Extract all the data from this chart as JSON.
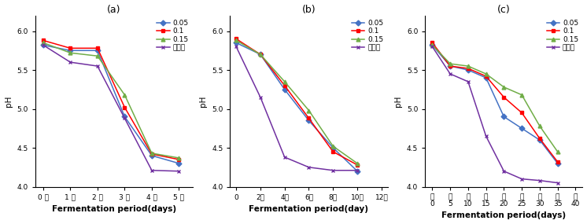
{
  "subplots": [
    {
      "title": "(a)",
      "xlabel": "Fermentation period(days)",
      "ylabel": "pH",
      "xlim": [
        -0.3,
        5.5
      ],
      "ylim": [
        4.0,
        6.2
      ],
      "yticks": [
        4.0,
        4.5,
        5.0,
        5.5,
        6.0
      ],
      "xtick_labels": [
        "0 일",
        "1 일",
        "2 일",
        "3 일",
        "4 일",
        "5 일"
      ],
      "xtick_positions": [
        0,
        1,
        2,
        3,
        4,
        5
      ],
      "series": [
        {
          "label": "0.05",
          "color": "#4472C4",
          "marker": "D",
          "x": [
            0,
            1,
            2,
            3,
            4,
            5
          ],
          "y": [
            5.82,
            5.75,
            5.75,
            4.9,
            4.4,
            4.3
          ]
        },
        {
          "label": "0.1",
          "color": "#FF0000",
          "marker": "s",
          "x": [
            0,
            1,
            2,
            3,
            4,
            5
          ],
          "y": [
            5.88,
            5.78,
            5.78,
            5.02,
            4.42,
            4.35
          ]
        },
        {
          "label": "0.15",
          "color": "#70AD47",
          "marker": "^",
          "x": [
            0,
            1,
            2,
            3,
            4,
            5
          ],
          "y": [
            5.85,
            5.72,
            5.68,
            5.18,
            4.43,
            4.37
          ]
        },
        {
          "label": "미첸가",
          "color": "#7030A0",
          "marker": "x",
          "x": [
            0,
            1,
            2,
            3,
            4,
            5
          ],
          "y": [
            5.82,
            5.6,
            5.55,
            4.88,
            4.21,
            4.2
          ]
        }
      ]
    },
    {
      "title": "(b)",
      "xlabel": "Fermentation period(day)",
      "ylabel": "pH",
      "xlim": [
        -0.5,
        12.5
      ],
      "ylim": [
        4.0,
        6.2
      ],
      "yticks": [
        4.0,
        4.5,
        5.0,
        5.5,
        6.0
      ],
      "xtick_labels": [
        "0",
        "2일",
        "4일",
        "6일",
        "8일",
        "10일",
        "12일"
      ],
      "xtick_positions": [
        0,
        2,
        4,
        6,
        8,
        10,
        12
      ],
      "series": [
        {
          "label": "0.05",
          "color": "#4472C4",
          "marker": "D",
          "x": [
            0,
            2,
            4,
            6,
            8,
            10
          ],
          "y": [
            5.85,
            5.7,
            5.25,
            4.85,
            4.5,
            4.2
          ]
        },
        {
          "label": "0.1",
          "color": "#FF0000",
          "marker": "s",
          "x": [
            0,
            2,
            4,
            6,
            8,
            10
          ],
          "y": [
            5.9,
            5.7,
            5.3,
            4.88,
            4.45,
            4.28
          ]
        },
        {
          "label": "0.15",
          "color": "#70AD47",
          "marker": "^",
          "x": [
            0,
            2,
            4,
            6,
            8,
            10
          ],
          "y": [
            5.88,
            5.7,
            5.35,
            4.98,
            4.52,
            4.3
          ]
        },
        {
          "label": "미첸가",
          "color": "#7030A0",
          "marker": "x",
          "x": [
            0,
            2,
            4,
            6,
            8,
            10
          ],
          "y": [
            5.8,
            5.15,
            4.38,
            4.25,
            4.21,
            4.21
          ]
        }
      ]
    },
    {
      "title": "(c)",
      "xlabel": "Fermentation period(days)",
      "ylabel": "pH",
      "xlim": [
        -2,
        42
      ],
      "ylim": [
        4.0,
        6.2
      ],
      "yticks": [
        4.0,
        4.5,
        5.0,
        5.5,
        6.0
      ],
      "xtick_labels": [
        "일\n0",
        "일\n5",
        "일\n10",
        "일\n15",
        "일\n20",
        "일\n25",
        "일\n30",
        "일\n35",
        "일\n40"
      ],
      "xtick_positions": [
        0,
        5,
        10,
        15,
        20,
        25,
        30,
        35,
        40
      ],
      "series": [
        {
          "label": "0.05",
          "color": "#4472C4",
          "marker": "D",
          "x": [
            0,
            5,
            10,
            15,
            20,
            25,
            30,
            35
          ],
          "y": [
            5.82,
            5.55,
            5.5,
            5.4,
            4.9,
            4.75,
            4.6,
            4.3
          ]
        },
        {
          "label": "0.1",
          "color": "#FF0000",
          "marker": "s",
          "x": [
            0,
            5,
            10,
            15,
            20,
            25,
            30,
            35
          ],
          "y": [
            5.85,
            5.55,
            5.52,
            5.42,
            5.15,
            4.95,
            4.62,
            4.32
          ]
        },
        {
          "label": "0.15",
          "color": "#70AD47",
          "marker": "^",
          "x": [
            0,
            5,
            10,
            15,
            20,
            25,
            30,
            35
          ],
          "y": [
            5.82,
            5.58,
            5.55,
            5.45,
            5.28,
            5.18,
            4.78,
            4.45
          ]
        },
        {
          "label": "미첸가",
          "color": "#7030A0",
          "marker": "x",
          "x": [
            0,
            5,
            10,
            15,
            20,
            25,
            30,
            35
          ],
          "y": [
            5.8,
            5.45,
            5.35,
            4.65,
            4.2,
            4.1,
            4.08,
            4.05
          ]
        }
      ]
    }
  ],
  "legend_fontsize": 6.5,
  "axis_label_fontsize": 7.5,
  "tick_fontsize": 6.5,
  "title_fontsize": 9,
  "linewidth": 1.1,
  "markersize": 3.5,
  "bg_color": "#ffffff"
}
